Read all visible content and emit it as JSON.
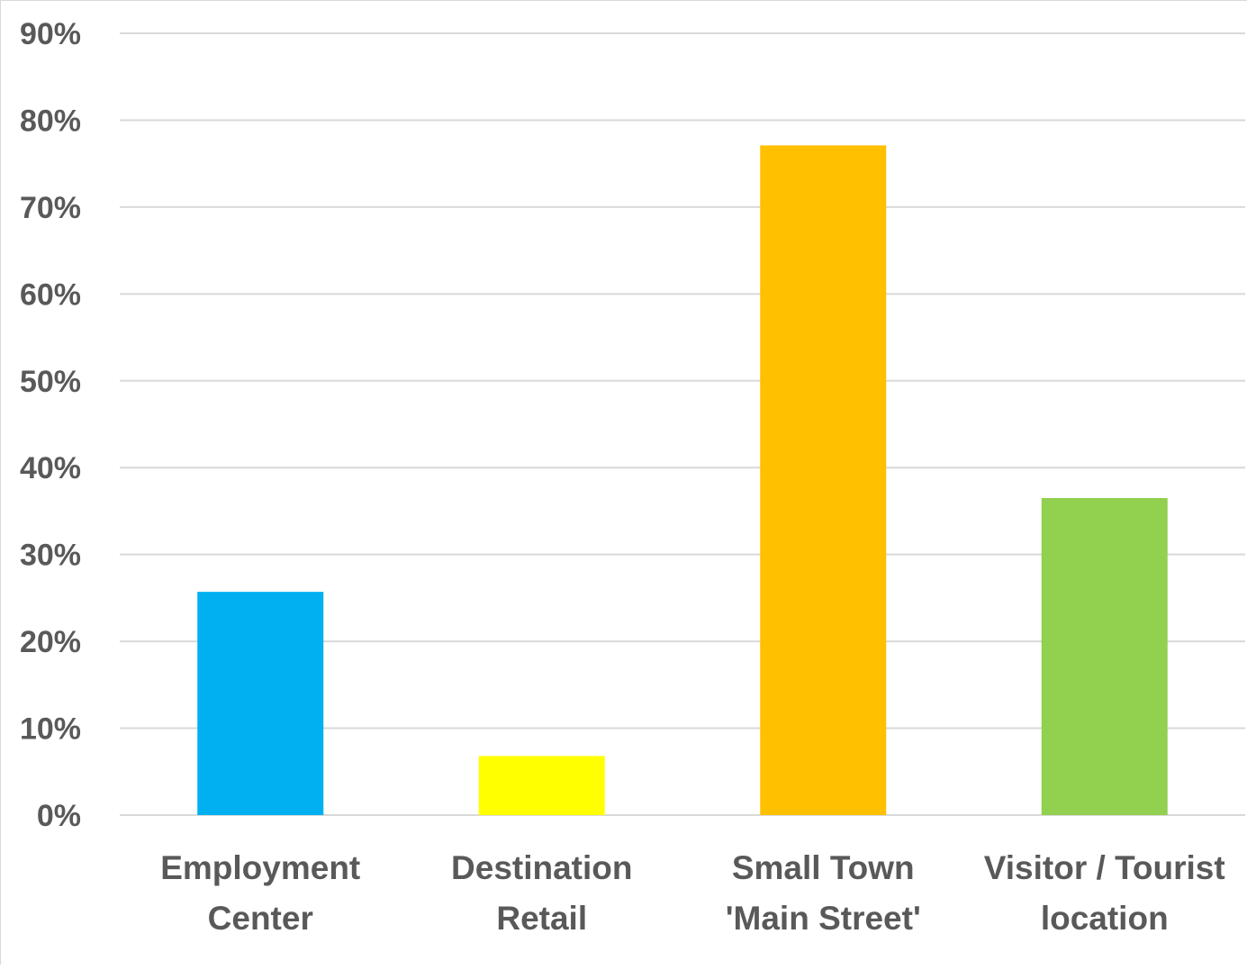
{
  "chart_data": {
    "type": "bar",
    "categories": [
      [
        "Employment",
        "Center"
      ],
      [
        "Destination",
        "Retail"
      ],
      [
        "Small Town",
        "'Main Street'"
      ],
      [
        "Visitor / Tourist",
        "location"
      ]
    ],
    "values": [
      25.7,
      6.8,
      77.1,
      36.5
    ],
    "colors": [
      "#00b0f0",
      "#ffff00",
      "#ffc000",
      "#92d050"
    ],
    "ylim": [
      0,
      90
    ],
    "yticks": [
      "0%",
      "10%",
      "20%",
      "30%",
      "40%",
      "50%",
      "60%",
      "70%",
      "80%",
      "90%"
    ],
    "ytick_values": [
      0,
      10,
      20,
      30,
      40,
      50,
      60,
      70,
      80,
      90
    ],
    "grid": true,
    "legend": "none",
    "title": "",
    "xlabel": "",
    "ylabel": ""
  }
}
